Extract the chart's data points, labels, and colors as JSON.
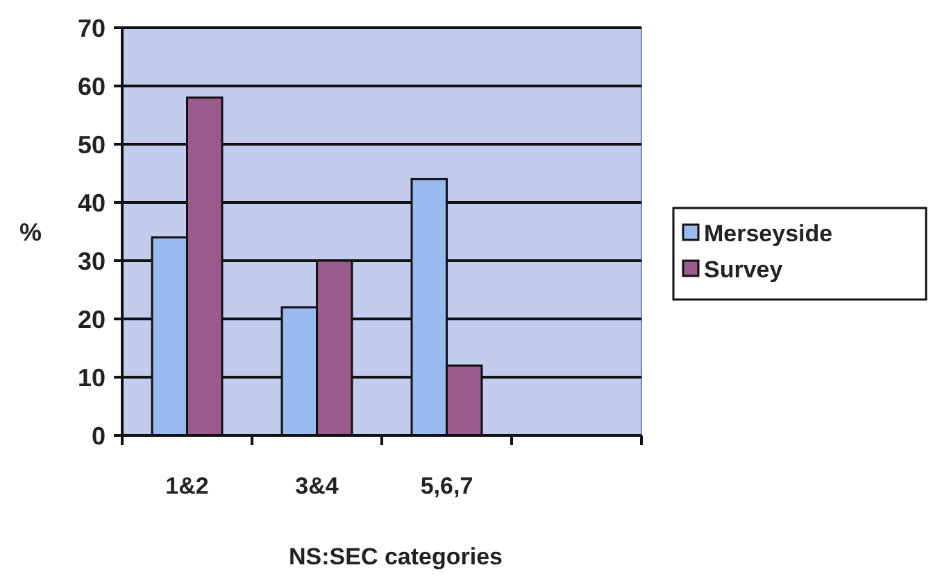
{
  "chart_data": {
    "type": "bar",
    "xlabel": "NS:SEC categories",
    "ylabel": "%",
    "categories": [
      "1&2",
      "3&4",
      "5,6,7",
      null
    ],
    "series": [
      {
        "name": "Merseyside",
        "color": "#99bbf0",
        "values": [
          34,
          22,
          44,
          null
        ]
      },
      {
        "name": "Survey",
        "color": "#995a8c",
        "values": [
          58,
          30,
          12,
          null
        ]
      }
    ],
    "ylim": [
      0,
      70
    ],
    "yticks": [
      0,
      10,
      20,
      30,
      40,
      50,
      60,
      70
    ],
    "grid": "y",
    "legend": "right"
  }
}
